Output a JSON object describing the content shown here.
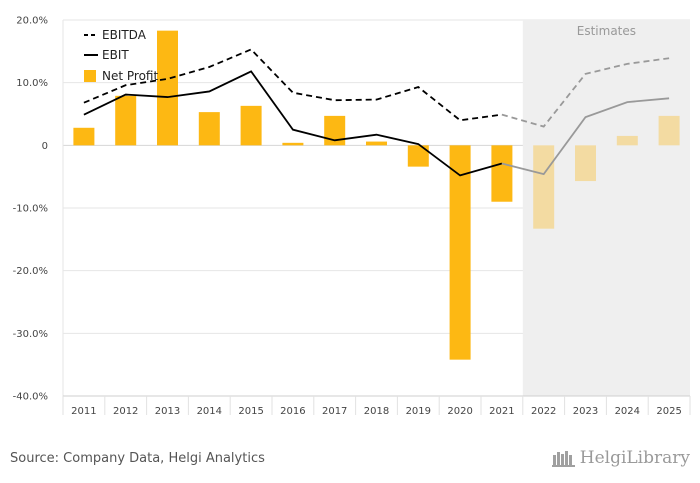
{
  "chart_data": {
    "type": "bar",
    "categories": [
      "2011",
      "2012",
      "2013",
      "2014",
      "2015",
      "2016",
      "2017",
      "2018",
      "2019",
      "2020",
      "2021",
      "2022",
      "2023",
      "2024",
      "2025"
    ],
    "estimate_start_index": 11,
    "estimates_label": "Estimates",
    "ylim": [
      -40,
      20
    ],
    "yticks": [
      20,
      10,
      0,
      -10,
      -20,
      -30,
      -40
    ],
    "ytick_labels": [
      "20.0%",
      "10.0%",
      "0",
      "-10.0%",
      "-20.0%",
      "-30.0%",
      "-40.0%"
    ],
    "series": [
      {
        "name": "EBITDA",
        "type": "line",
        "style": "dashed",
        "color": "#000000",
        "values": [
          6.8,
          9.6,
          10.6,
          12.5,
          15.3,
          8.4,
          7.2,
          7.3,
          9.3,
          4.0,
          4.9,
          3.0,
          11.4,
          13.0,
          13.9
        ]
      },
      {
        "name": "EBIT",
        "type": "line",
        "style": "solid",
        "color": "#000000",
        "values": [
          4.9,
          8.1,
          7.7,
          8.6,
          11.8,
          2.5,
          0.8,
          1.7,
          0.2,
          -4.8,
          -2.9,
          -4.6,
          4.5,
          6.9,
          7.5
        ]
      },
      {
        "name": "Net Profit",
        "type": "bar",
        "color": "#FDB813",
        "values": [
          2.8,
          7.9,
          18.3,
          5.3,
          6.3,
          0.4,
          4.7,
          0.6,
          -3.4,
          -34.2,
          -9.0,
          -13.3,
          -5.7,
          1.5,
          4.7
        ]
      }
    ],
    "legend_position": "top-left",
    "grid": true
  },
  "footer": {
    "source": "Source: Company Data, Helgi Analytics",
    "brand": "HelgiLibrary"
  }
}
